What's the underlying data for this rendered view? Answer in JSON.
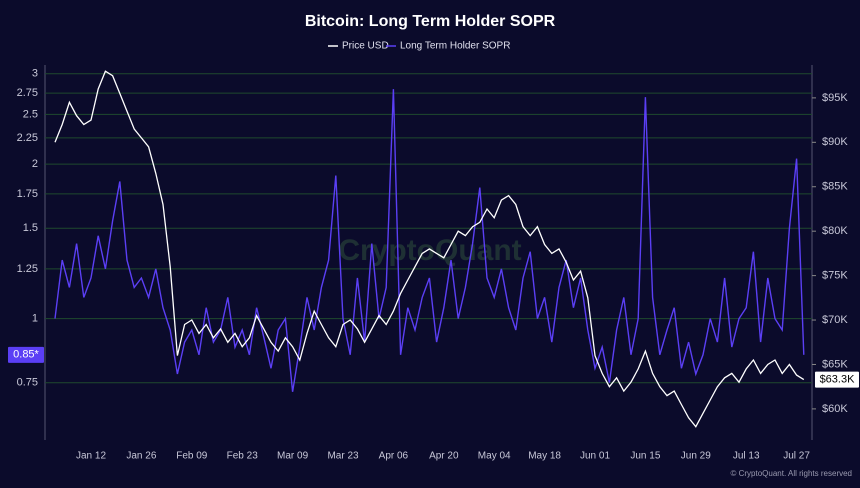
{
  "chart_data": {
    "type": "line",
    "title": "Bitcoin: Long Term Holder SOPR",
    "watermark": "CryptoQuant",
    "copyright": "© CryptoQuant. All rights reserved",
    "categories": [
      "Jan 02",
      "Jan 04",
      "Jan 06",
      "Jan 08",
      "Jan 10",
      "Jan 12",
      "Jan 14",
      "Jan 16",
      "Jan 18",
      "Jan 20",
      "Jan 22",
      "Jan 24",
      "Jan 26",
      "Jan 28",
      "Jan 30",
      "Feb 01",
      "Feb 03",
      "Feb 05",
      "Feb 07",
      "Feb 09",
      "Feb 11",
      "Feb 13",
      "Feb 15",
      "Feb 17",
      "Feb 19",
      "Feb 21",
      "Feb 23",
      "Feb 25",
      "Feb 27",
      "Mar 01",
      "Mar 03",
      "Mar 05",
      "Mar 07",
      "Mar 09",
      "Mar 11",
      "Mar 13",
      "Mar 15",
      "Mar 17",
      "Mar 19",
      "Mar 21",
      "Mar 23",
      "Mar 25",
      "Mar 27",
      "Mar 29",
      "Mar 31",
      "Apr 02",
      "Apr 04",
      "Apr 06",
      "Apr 08",
      "Apr 10",
      "Apr 12",
      "Apr 14",
      "Apr 16",
      "Apr 18",
      "Apr 20",
      "Apr 22",
      "Apr 24",
      "Apr 26",
      "Apr 28",
      "Apr 30",
      "May 02",
      "May 04",
      "May 06",
      "May 08",
      "May 10",
      "May 12",
      "May 14",
      "May 16",
      "May 18",
      "May 20",
      "May 22",
      "May 24",
      "May 26",
      "May 28",
      "May 30",
      "Jun 01",
      "Jun 03",
      "Jun 05",
      "Jun 07",
      "Jun 09",
      "Jun 11",
      "Jun 13",
      "Jun 15",
      "Jun 17",
      "Jun 19",
      "Jun 21",
      "Jun 23",
      "Jun 25",
      "Jun 27",
      "Jun 29",
      "Jul 01",
      "Jul 03",
      "Jul 05",
      "Jul 07",
      "Jul 09",
      "Jul 11",
      "Jul 13",
      "Jul 15",
      "Jul 17",
      "Jul 19",
      "Jul 21",
      "Jul 23",
      "Jul 25",
      "Jul 27",
      "Jul 29"
    ],
    "xticks": [
      "Jan 12",
      "Jan 26",
      "Feb 09",
      "Feb 23",
      "Mar 09",
      "Mar 23",
      "Apr 06",
      "Apr 20",
      "May 04",
      "May 18",
      "Jun 01",
      "Jun 15",
      "Jun 29",
      "Jul 13",
      "Jul 27"
    ],
    "series": [
      {
        "name": "Price USD",
        "color": "#ffffff",
        "axis": "y2",
        "last_value_label": "$63.3K",
        "values": [
          90000,
          92000,
          94500,
          93000,
          92000,
          92500,
          96000,
          98000,
          97500,
          95500,
          93500,
          91500,
          90500,
          89500,
          86500,
          83000,
          76000,
          66000,
          69500,
          70000,
          68500,
          69500,
          68000,
          69000,
          67500,
          68500,
          67000,
          68000,
          70500,
          69000,
          67500,
          66500,
          68000,
          67000,
          65500,
          68500,
          71000,
          69500,
          68000,
          67000,
          69500,
          70000,
          69000,
          67500,
          69000,
          70500,
          69500,
          71000,
          73000,
          74500,
          76000,
          77500,
          78000,
          77500,
          77000,
          78500,
          80000,
          79500,
          80500,
          81000,
          82500,
          81500,
          83500,
          84000,
          83000,
          80500,
          79500,
          80500,
          78500,
          77500,
          78000,
          76500,
          74500,
          75500,
          72500,
          66000,
          64000,
          62500,
          63500,
          62000,
          63000,
          64500,
          66500,
          64000,
          62500,
          61500,
          62000,
          60500,
          59000,
          58000,
          59500,
          61000,
          62500,
          63500,
          64000,
          63000,
          64500,
          65500,
          64000,
          65000,
          65500,
          64000,
          65000,
          63800,
          63300
        ]
      },
      {
        "name": "Long Term Holder SOPR",
        "color": "#5b3ff5",
        "last_value_label": "0.85*",
        "values": [
          1.0,
          1.3,
          1.15,
          1.4,
          1.1,
          1.2,
          1.45,
          1.25,
          1.55,
          1.85,
          1.3,
          1.15,
          1.2,
          1.1,
          1.25,
          1.05,
          0.95,
          0.78,
          0.9,
          0.95,
          0.85,
          1.05,
          0.9,
          0.95,
          1.1,
          0.88,
          0.95,
          0.85,
          1.05,
          0.92,
          0.8,
          0.95,
          1.0,
          0.72,
          0.88,
          1.1,
          0.95,
          1.15,
          1.3,
          1.9,
          1.0,
          0.85,
          1.2,
          0.9,
          1.4,
          1.0,
          1.15,
          2.8,
          0.85,
          1.05,
          0.95,
          1.1,
          1.2,
          0.9,
          1.05,
          1.3,
          1.0,
          1.15,
          1.4,
          1.8,
          1.2,
          1.1,
          1.25,
          1.05,
          0.95,
          1.2,
          1.35,
          1.0,
          1.1,
          0.9,
          1.15,
          1.3,
          1.05,
          1.2,
          0.95,
          0.8,
          0.88,
          0.75,
          0.95,
          1.1,
          0.85,
          1.0,
          2.7,
          1.1,
          0.85,
          0.95,
          1.05,
          0.8,
          0.9,
          0.78,
          0.85,
          1.0,
          0.9,
          1.2,
          0.88,
          1.0,
          1.05,
          1.35,
          0.9,
          1.2,
          1.0,
          0.95,
          1.5,
          2.05,
          0.85
        ]
      }
    ],
    "ylim": [
      0.58,
      3.12
    ],
    "ylog": true,
    "yticks": [
      0.75,
      1,
      1.25,
      1.5,
      1.75,
      2,
      2.25,
      2.5,
      2.75,
      3
    ],
    "y2lim": [
      56500,
      98700
    ],
    "y2ticks": [
      {
        "value": 60000,
        "label": "$60K"
      },
      {
        "value": 65000,
        "label": "$65K"
      },
      {
        "value": 70000,
        "label": "$70K"
      },
      {
        "value": 75000,
        "label": "$75K"
      },
      {
        "value": 80000,
        "label": "$80K"
      },
      {
        "value": 85000,
        "label": "$85K"
      },
      {
        "value": 90000,
        "label": "$90K"
      },
      {
        "value": 95000,
        "label": "$95K"
      }
    ],
    "grid": true
  }
}
